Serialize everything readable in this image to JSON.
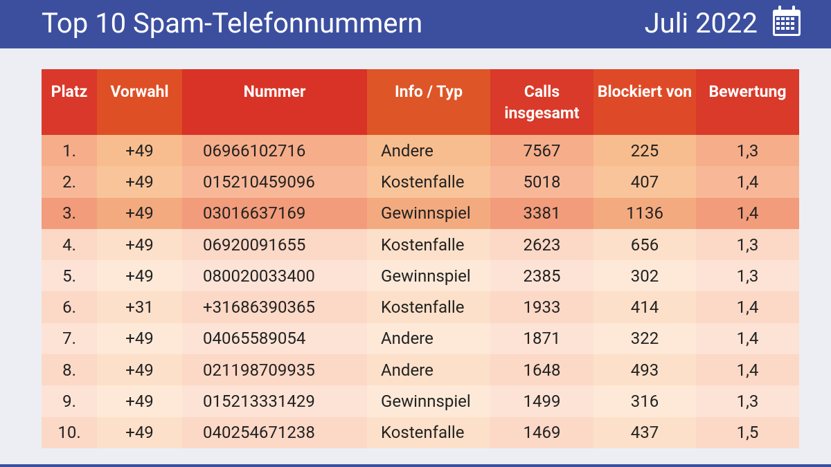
{
  "header": {
    "title": "Top 10 Spam-Telefonnummern",
    "date": "Juli 2022"
  },
  "table": {
    "columns": [
      "Platz",
      "Vorwahl",
      "Nummer",
      "Info / Typ",
      "Calls insgesamt",
      "Blockiert von",
      "Bewertung"
    ],
    "rows": [
      [
        "1.",
        "+49",
        "06966102716",
        "Andere",
        "7567",
        "225",
        "1,3"
      ],
      [
        "2.",
        "+49",
        "015210459096",
        "Kostenfalle",
        "5018",
        "407",
        "1,4"
      ],
      [
        "3.",
        "+49",
        "03016637169",
        "Gewinnspiel",
        "3381",
        "1136",
        "1,4"
      ],
      [
        "4.",
        "+49",
        "06920091655",
        "Kostenfalle",
        "2623",
        "656",
        "1,3"
      ],
      [
        "5.",
        "+49",
        "080020033400",
        "Gewinnspiel",
        "2385",
        "302",
        "1,3"
      ],
      [
        "6.",
        "+31",
        "+31686390365",
        "Kostenfalle",
        "1933",
        "414",
        "1,4"
      ],
      [
        "7.",
        "+49",
        "04065589054",
        "Andere",
        "1871",
        "322",
        "1,4"
      ],
      [
        "8.",
        "+49",
        "021198709935",
        "Andere",
        "1648",
        "493",
        "1,4"
      ],
      [
        "9.",
        "+49",
        "015213331429",
        "Gewinnspiel",
        "1499",
        "316",
        "1,3"
      ],
      [
        "10.",
        "+49",
        "040254671238",
        "Kostenfalle",
        "1469",
        "437",
        "1,5"
      ]
    ]
  }
}
